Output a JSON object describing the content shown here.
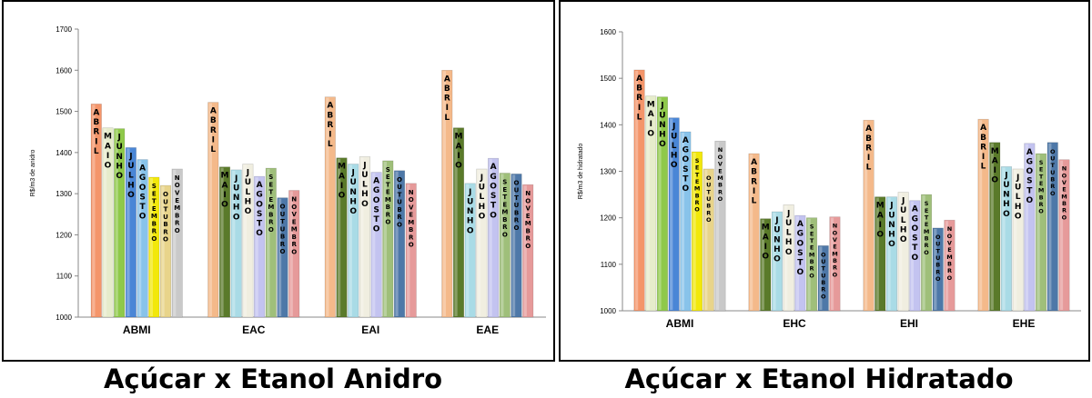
{
  "months": [
    "ABRIL",
    "MAIO",
    "JUNHO",
    "JULHO",
    "AGOSTO",
    "SETEMBRO",
    "OUTUBRO",
    "NOVEMBRO"
  ],
  "colors": [
    "#f4956a",
    "#e6eccb",
    "#8fc94a",
    "#4a86d6",
    "#88c3ea",
    "#f2e80a",
    "#e8d48a",
    "#c9c9c9"
  ],
  "chart_data": [
    {
      "type": "bar",
      "ylabel": "R$/m3 de anidro",
      "ylim": [
        1000,
        1700
      ],
      "yticks": [
        1000,
        1100,
        1200,
        1300,
        1400,
        1500,
        1600,
        1700
      ],
      "categories": [
        "ABMI",
        "EAC",
        "EAI",
        "EAE"
      ],
      "colors_by_group": [
        [
          "#f4956a",
          "#e6eccb",
          "#8fc94a",
          "#4a86d6",
          "#88c3ea",
          "#f2e80a",
          "#e8d48a",
          "#c9c9c9"
        ],
        [
          "#f4b98a",
          "#5a7a2a",
          "#a9dbe6",
          "#f0eee0",
          "#c3c3f0",
          "#9fbf7a",
          "#4e78a8",
          "#e69a9a"
        ],
        [
          "#f4b98a",
          "#5a7a2a",
          "#a9dbe6",
          "#f0eee0",
          "#c3c3f0",
          "#9fbf7a",
          "#4e78a8",
          "#e69a9a"
        ],
        [
          "#f4b98a",
          "#5a7a2a",
          "#a9dbe6",
          "#f0eee0",
          "#c3c3f0",
          "#9fbf7a",
          "#4e78a8",
          "#e69a9a"
        ]
      ],
      "series": [
        {
          "name": "ABRIL",
          "values": [
            1518,
            1522,
            1535,
            1600
          ]
        },
        {
          "name": "MAIO",
          "values": [
            1460,
            1365,
            1387,
            1460
          ]
        },
        {
          "name": "JUNHO",
          "values": [
            1458,
            1358,
            1372,
            1325
          ]
        },
        {
          "name": "JULHO",
          "values": [
            1412,
            1372,
            1390,
            1360
          ]
        },
        {
          "name": "AGOSTO",
          "values": [
            1383,
            1342,
            1352,
            1386
          ]
        },
        {
          "name": "SETEMBRO",
          "values": [
            1340,
            1362,
            1380,
            1350
          ]
        },
        {
          "name": "OUTUBRO",
          "values": [
            1320,
            1290,
            1356,
            1348
          ]
        },
        {
          "name": "NOVEMBRO",
          "values": [
            1360,
            1308,
            1325,
            1322
          ]
        }
      ],
      "caption": "Açúcar x Etanol Anidro"
    },
    {
      "type": "bar",
      "ylabel": "R$/m3 de hidratado",
      "ylim": [
        1000,
        1600
      ],
      "yticks": [
        1000,
        1100,
        1200,
        1300,
        1400,
        1500,
        1600
      ],
      "categories": [
        "ABMI",
        "EHC",
        "EHI",
        "EHE"
      ],
      "colors_by_group": [
        [
          "#f4956a",
          "#e6eccb",
          "#8fc94a",
          "#4a86d6",
          "#88c3ea",
          "#f2e80a",
          "#e8d48a",
          "#c9c9c9"
        ],
        [
          "#f4b98a",
          "#5a7a2a",
          "#a9dbe6",
          "#f0eee0",
          "#c3c3f0",
          "#9fbf7a",
          "#4e78a8",
          "#e69a9a"
        ],
        [
          "#f4b98a",
          "#5a7a2a",
          "#a9dbe6",
          "#f0eee0",
          "#c3c3f0",
          "#9fbf7a",
          "#4e78a8",
          "#e69a9a"
        ],
        [
          "#f4b98a",
          "#5a7a2a",
          "#a9dbe6",
          "#f0eee0",
          "#c3c3f0",
          "#9fbf7a",
          "#4e78a8",
          "#e69a9a"
        ]
      ],
      "series": [
        {
          "name": "ABRIL",
          "values": [
            1518,
            1338,
            1410,
            1412
          ]
        },
        {
          "name": "MAIO",
          "values": [
            1462,
            1198,
            1245,
            1362
          ]
        },
        {
          "name": "JUNHO",
          "values": [
            1460,
            1213,
            1245,
            1310
          ]
        },
        {
          "name": "JULHO",
          "values": [
            1415,
            1228,
            1255,
            1305
          ]
        },
        {
          "name": "AGOSTO",
          "values": [
            1385,
            1205,
            1237,
            1360
          ]
        },
        {
          "name": "SETEMBRO",
          "values": [
            1342,
            1200,
            1250,
            1338
          ]
        },
        {
          "name": "OUTUBRO",
          "values": [
            1305,
            1140,
            1178,
            1362
          ]
        },
        {
          "name": "NOVEMBRO",
          "values": [
            1365,
            1202,
            1195,
            1325
          ]
        }
      ],
      "caption": "Açúcar x Etanol Hidratado"
    }
  ]
}
